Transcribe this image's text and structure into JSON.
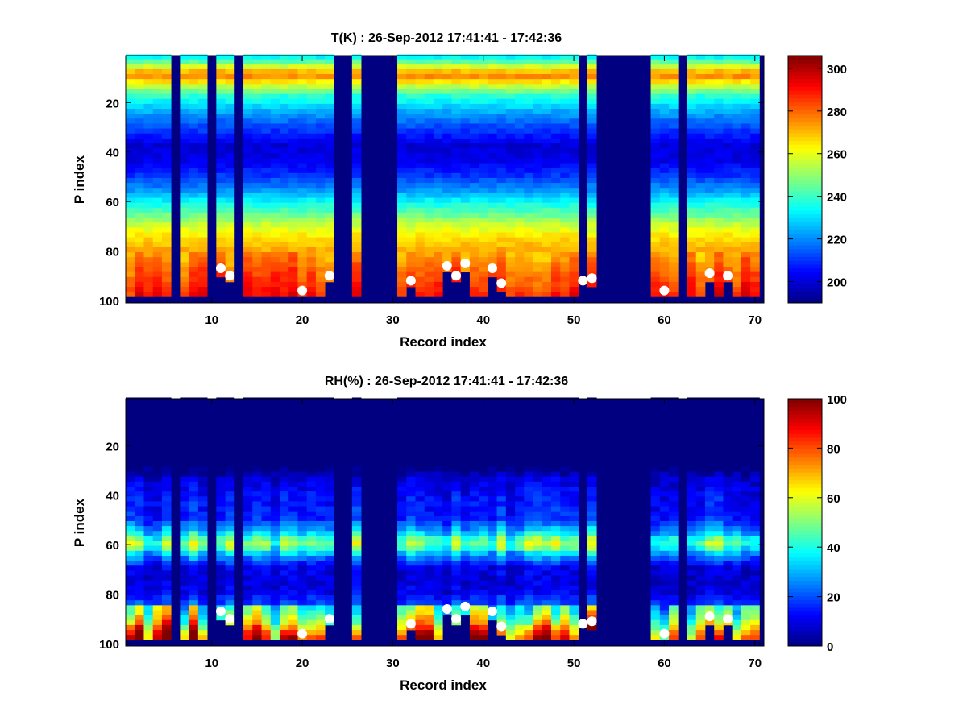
{
  "chart_data": [
    {
      "type": "heatmap",
      "title": "T(K) : 26-Sep-2012 17:41:41 - 17:42:36",
      "xlabel": "Record index",
      "ylabel": "P index",
      "xlim": [
        0.5,
        71
      ],
      "ylim": [
        1,
        101
      ],
      "y_reversed": true,
      "xticks": [
        10,
        20,
        30,
        40,
        50,
        60,
        70
      ],
      "yticks": [
        20,
        40,
        60,
        80,
        100
      ],
      "colormap": "jet",
      "fill_value": 190,
      "color_limits": [
        190,
        306
      ],
      "colorbar_ticks": [
        200,
        220,
        240,
        260,
        280,
        300
      ],
      "empty_records": [
        6,
        10,
        13,
        24,
        25,
        27,
        28,
        29,
        30,
        51,
        53,
        54,
        55,
        56,
        57,
        58,
        62,
        71
      ],
      "surface_markers": [
        {
          "record": 11,
          "p": 87
        },
        {
          "record": 12,
          "p": 90
        },
        {
          "record": 20,
          "p": 96
        },
        {
          "record": 23,
          "p": 90
        },
        {
          "record": 32,
          "p": 92
        },
        {
          "record": 36,
          "p": 86
        },
        {
          "record": 37,
          "p": 90
        },
        {
          "record": 38,
          "p": 85
        },
        {
          "record": 41,
          "p": 87
        },
        {
          "record": 42,
          "p": 93
        },
        {
          "record": 51,
          "p": 92
        },
        {
          "record": 52,
          "p": 91
        },
        {
          "record": 60,
          "p": 96
        },
        {
          "record": 65,
          "p": 89
        },
        {
          "record": 67,
          "p": 90
        }
      ],
      "mean_profile": {
        "p": [
          1,
          5,
          8,
          10,
          13,
          18,
          25,
          32,
          38,
          44,
          50,
          56,
          60,
          65,
          70,
          75,
          80,
          85,
          90,
          95,
          98
        ],
        "value": [
          228,
          250,
          270,
          275,
          260,
          238,
          222,
          210,
          200,
          202,
          210,
          222,
          232,
          244,
          256,
          266,
          272,
          277,
          282,
          286,
          289
        ]
      }
    },
    {
      "type": "heatmap",
      "title": "RH(%) : 26-Sep-2012 17:41:41 - 17:42:36",
      "xlabel": "Record index",
      "ylabel": "P index",
      "xlim": [
        0.5,
        71
      ],
      "ylim": [
        1,
        101
      ],
      "y_reversed": true,
      "xticks": [
        10,
        20,
        30,
        40,
        50,
        60,
        70
      ],
      "yticks": [
        20,
        40,
        60,
        80,
        100
      ],
      "colormap": "jet",
      "fill_value": 0,
      "color_limits": [
        0,
        100
      ],
      "colorbar_ticks": [
        0,
        20,
        40,
        60,
        80,
        100
      ],
      "empty_records": [
        6,
        10,
        13,
        24,
        25,
        27,
        28,
        29,
        30,
        51,
        53,
        54,
        55,
        56,
        57,
        58,
        62,
        71
      ],
      "surface_markers": [
        {
          "record": 11,
          "p": 87
        },
        {
          "record": 12,
          "p": 90
        },
        {
          "record": 20,
          "p": 96
        },
        {
          "record": 23,
          "p": 90
        },
        {
          "record": 32,
          "p": 92
        },
        {
          "record": 36,
          "p": 86
        },
        {
          "record": 37,
          "p": 90
        },
        {
          "record": 38,
          "p": 85
        },
        {
          "record": 41,
          "p": 87
        },
        {
          "record": 42,
          "p": 93
        },
        {
          "record": 51,
          "p": 92
        },
        {
          "record": 52,
          "p": 91
        },
        {
          "record": 60,
          "p": 96
        },
        {
          "record": 65,
          "p": 89
        },
        {
          "record": 67,
          "p": 90
        }
      ],
      "mean_profile": {
        "p": [
          1,
          30,
          34,
          40,
          50,
          55,
          58,
          60,
          62,
          64,
          67,
          70,
          75,
          80,
          84,
          88,
          92,
          95,
          98
        ],
        "value": [
          0,
          0,
          8,
          12,
          15,
          28,
          42,
          48,
          42,
          30,
          18,
          10,
          8,
          10,
          18,
          25,
          35,
          50,
          60
        ]
      }
    }
  ]
}
